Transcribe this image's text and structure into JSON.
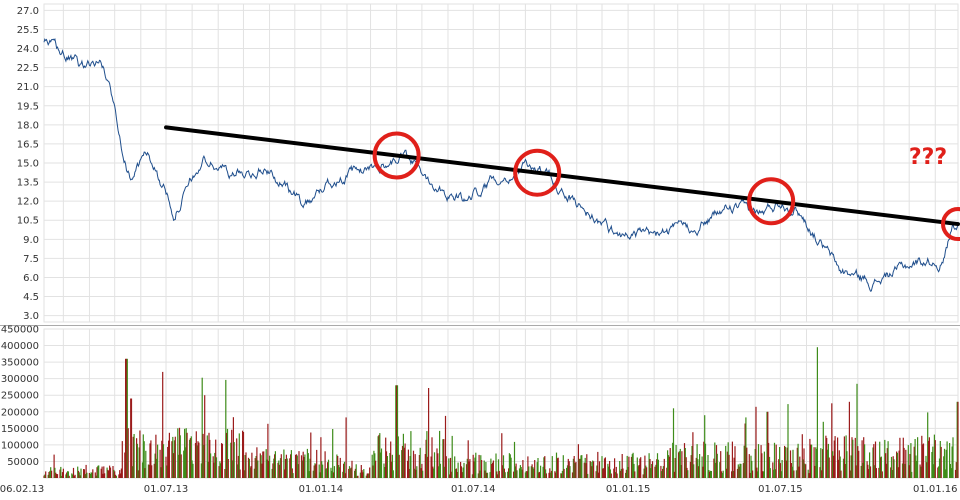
{
  "colors": {
    "background": "#ffffff",
    "grid": "#e2e2e2",
    "price_line": "#1f4e8c",
    "trend_line": "#000000",
    "circle": "#e0201a",
    "annotation": "#e0201a",
    "volume_up": "#3e8c1a",
    "volume_down": "#9b1b1b",
    "separator": "#aaaaaa"
  },
  "chart_data": [
    {
      "type": "line",
      "panel": "price",
      "title": "",
      "xlabel": "",
      "ylabel": "",
      "ylim": [
        2.5,
        27.5
      ],
      "grid": true,
      "ytick_labels": [
        "3.0",
        "4.5",
        "6.0",
        "7.5",
        "9.0",
        "10.5",
        "12.0",
        "13.5",
        "15.0",
        "16.5",
        "18.0",
        "19.5",
        "21.0",
        "22.5",
        "24.0",
        "25.5",
        "27.0"
      ],
      "series": [
        {
          "x": [
            "2013-02-06",
            "2013-03-01",
            "2013-03-20",
            "2013-04-15",
            "2013-04-25",
            "2013-05-15",
            "2013-05-20",
            "2013-06-10",
            "2013-07-10",
            "2013-08-15",
            "2013-09-20",
            "2013-10-30",
            "2013-12-10",
            "2014-01-20",
            "2014-03-01",
            "2014-04-10",
            "2014-05-15",
            "2014-06-20",
            "2014-08-01",
            "2014-09-15",
            "2014-11-01",
            "2014-12-15",
            "2015-02-01",
            "2015-03-20",
            "2015-05-01",
            "2015-06-10",
            "2015-07-01",
            "2015-07-20",
            "2015-09-10",
            "2015-10-20",
            "2015-12-01",
            "2015-12-20",
            "2016-01-10",
            "2016-01-22"
          ],
          "values": [
            24.5,
            23.5,
            22.5,
            23.0,
            21.0,
            15.0,
            14.0,
            15.8,
            11.2,
            15.2,
            14.2,
            14.5,
            11.8,
            13.8,
            14.5,
            15.5,
            13.5,
            12.0,
            14.0,
            14.8,
            11.8,
            9.5,
            9.2,
            10.0,
            11.5,
            11.0,
            12.0,
            11.5,
            6.5,
            5.6,
            7.0,
            7.3,
            7.2,
            10.2
          ]
        }
      ],
      "trend_line": {
        "x": [
          "2013-07-01",
          "2016-01-28"
        ],
        "values": [
          17.8,
          10.2
        ]
      },
      "circled_dates": [
        "2014-04-01",
        "2014-09-15",
        "2015-06-20",
        "2016-01-28"
      ],
      "annotation": "???"
    },
    {
      "type": "bar",
      "panel": "volume",
      "title": "",
      "xlabel": "",
      "ylabel": "",
      "ylim": [
        0,
        450000
      ],
      "grid": true,
      "ytick_labels": [
        "50000",
        "100000",
        "150000",
        "200000",
        "250000",
        "300000",
        "350000",
        "400000",
        "450000"
      ],
      "peaks": [
        {
          "x": "2013-05-15",
          "value": 360000
        },
        {
          "x": "2013-05-20",
          "value": 240000
        },
        {
          "x": "2014-04-01",
          "value": 280000
        },
        {
          "x": "2015-06-15",
          "value": 200000
        },
        {
          "x": "2015-08-15",
          "value": 395000
        },
        {
          "x": "2015-09-20",
          "value": 230000
        },
        {
          "x": "2016-01-28",
          "value": 230000
        }
      ]
    }
  ],
  "x_axis": {
    "tick_labels": [
      "06.02.13",
      "01.07.13",
      "01.01.14",
      "01.07.14",
      "01.01.15",
      "01.07.15",
      "01.01.16"
    ]
  }
}
